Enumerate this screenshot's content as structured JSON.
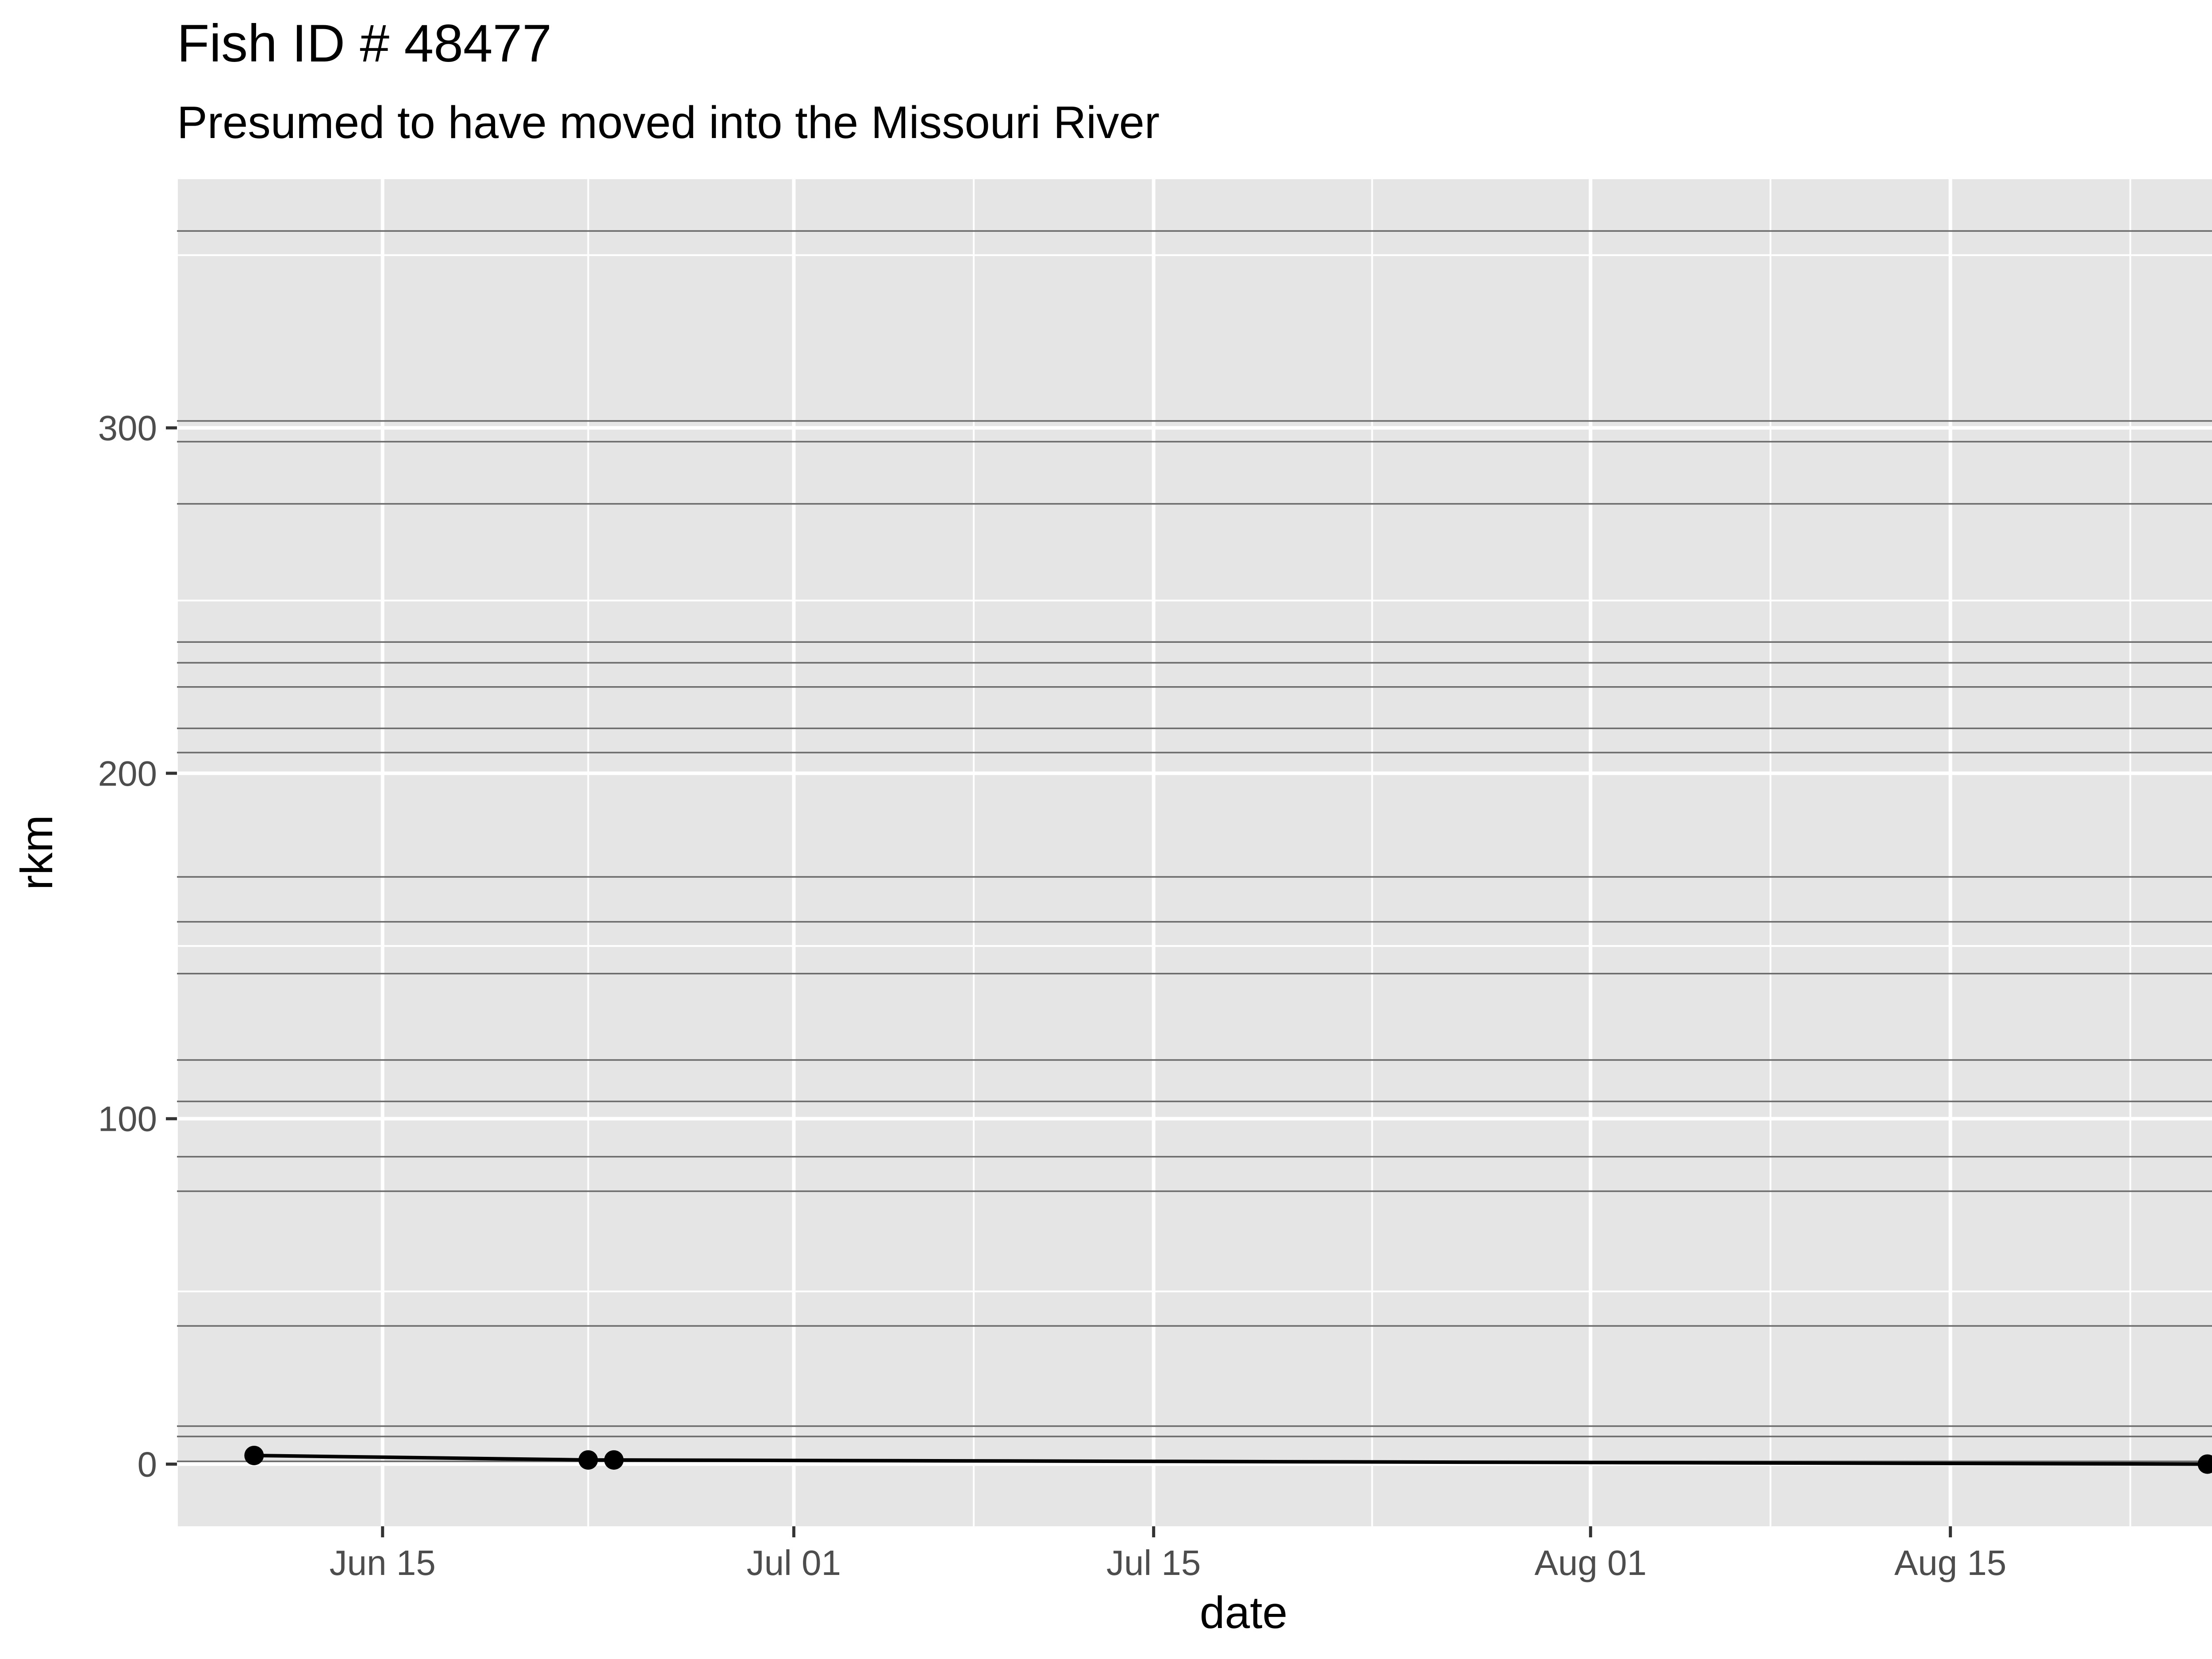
{
  "chart_data": {
    "type": "line",
    "title": "Fish ID # 48477",
    "subtitle": "Presumed to have moved into the Missouri River",
    "xlabel": "date",
    "ylabel": "rkm",
    "x_ticks": [
      "Jun 15",
      "Jul 01",
      "Jul 15",
      "Aug 01",
      "Aug 15"
    ],
    "y_ticks": [
      0,
      100,
      200,
      300
    ],
    "xlim": [
      "2025-06-07",
      "2025-08-29"
    ],
    "ylim": [
      -18,
      372
    ],
    "grid": true,
    "series": [
      {
        "x": [
          "2025-06-10",
          "2025-06-23",
          "2025-06-24",
          "2025-08-25"
        ],
        "y": [
          2.5,
          1.2,
          1.2,
          0
        ]
      }
    ],
    "reference_lines_rkm": [
      0.8,
      8,
      11,
      40,
      79,
      89,
      105,
      117,
      142,
      157,
      170,
      206,
      213,
      225,
      232,
      238,
      278,
      296,
      302,
      357
    ],
    "colors": {
      "panel_background": "#e5e5e5",
      "gridline": "#ffffff",
      "reference_line": "#6b6b6b",
      "series": "#000000"
    }
  }
}
